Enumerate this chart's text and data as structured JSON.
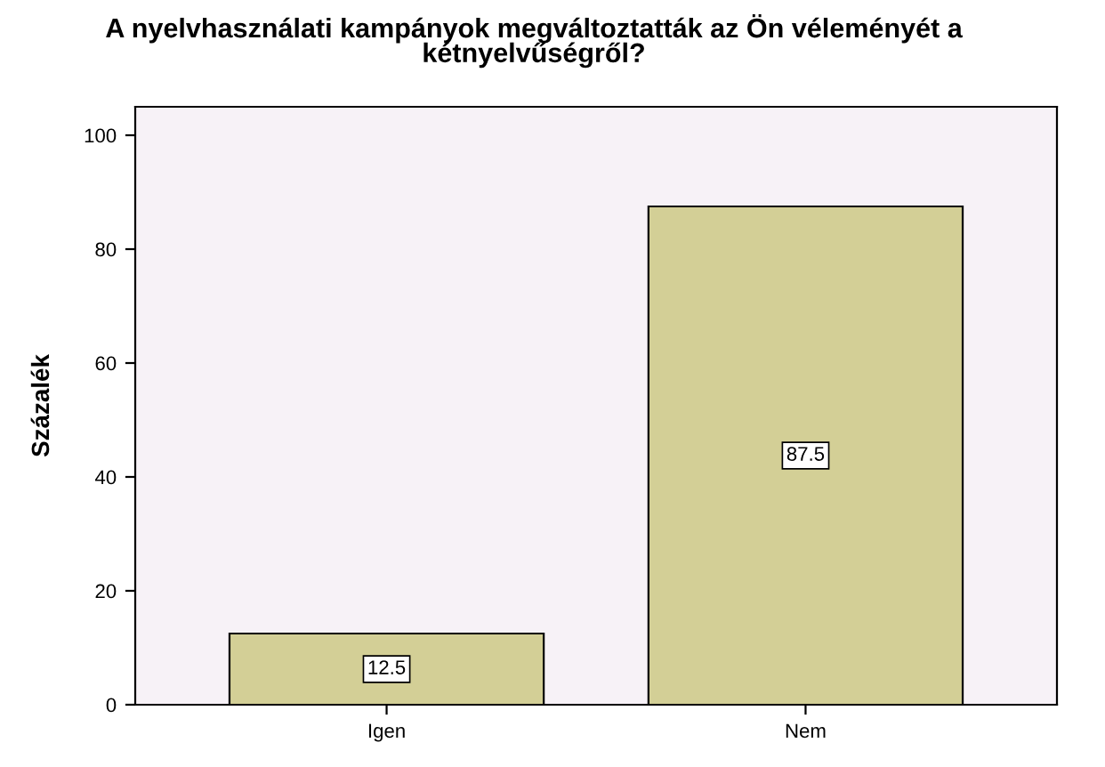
{
  "chart_data": {
    "type": "bar",
    "title": "A nyelvhasználati kampányok megváltoztatták az Ön véleményét a\nkétnyelvűségről?",
    "ylabel": "Százalék",
    "categories": [
      "Igen",
      "Nem"
    ],
    "series": [
      {
        "color": "#d3cf96",
        "values": [
          12.5,
          87.5
        ]
      }
    ],
    "ylim": [
      0,
      105
    ],
    "yticks": [
      0,
      20,
      40,
      60,
      80,
      100
    ],
    "grid": false,
    "legend": false,
    "data_labels": true
  }
}
